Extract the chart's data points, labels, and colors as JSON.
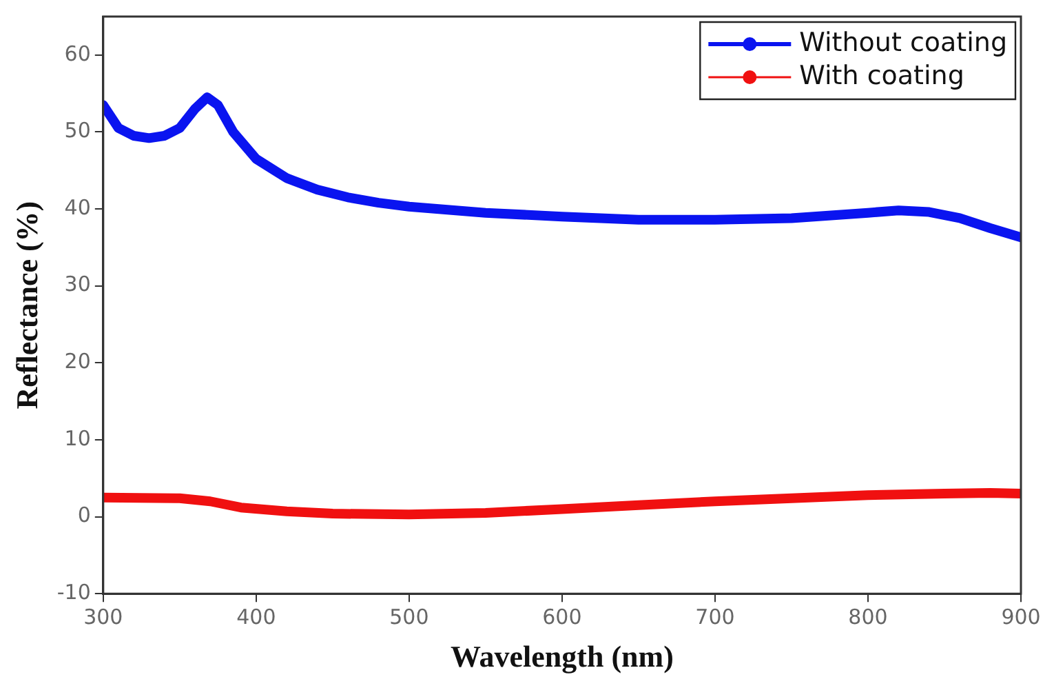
{
  "chart_data": {
    "type": "line",
    "xlabel": "Wavelength (nm)",
    "ylabel": "Reflectance (%)",
    "xlim": [
      300,
      900
    ],
    "xticks": [
      300,
      400,
      500,
      600,
      700,
      800,
      900
    ],
    "ylim": [
      -10,
      65
    ],
    "yticks": [
      -10,
      0,
      10,
      20,
      30,
      40,
      50,
      60
    ],
    "grid": false,
    "legend": "top right",
    "marker": "none",
    "line_style": "solid",
    "series": [
      {
        "name": "Without coating",
        "color": "#0a14f0",
        "x": [
          300,
          310,
          320,
          330,
          340,
          350,
          360,
          368,
          375,
          385,
          400,
          420,
          440,
          460,
          480,
          500,
          550,
          600,
          650,
          700,
          750,
          800,
          820,
          840,
          860,
          880,
          900
        ],
        "values": [
          53.5,
          50.5,
          49.5,
          49.2,
          49.5,
          50.5,
          53,
          54.5,
          53.5,
          50,
          46.5,
          44,
          42.5,
          41.5,
          40.8,
          40.3,
          39.5,
          39,
          38.6,
          38.6,
          38.8,
          39.5,
          39.8,
          39.6,
          38.8,
          37.5,
          36.3
        ]
      },
      {
        "name": "With coating",
        "color": "#f01010",
        "x": [
          300,
          350,
          370,
          390,
          420,
          450,
          500,
          550,
          600,
          650,
          700,
          750,
          800,
          850,
          880,
          900
        ],
        "values": [
          2.5,
          2.4,
          2,
          1.2,
          0.7,
          0.4,
          0.3,
          0.5,
          1,
          1.5,
          2,
          2.4,
          2.8,
          3,
          3.1,
          3
        ]
      }
    ]
  }
}
